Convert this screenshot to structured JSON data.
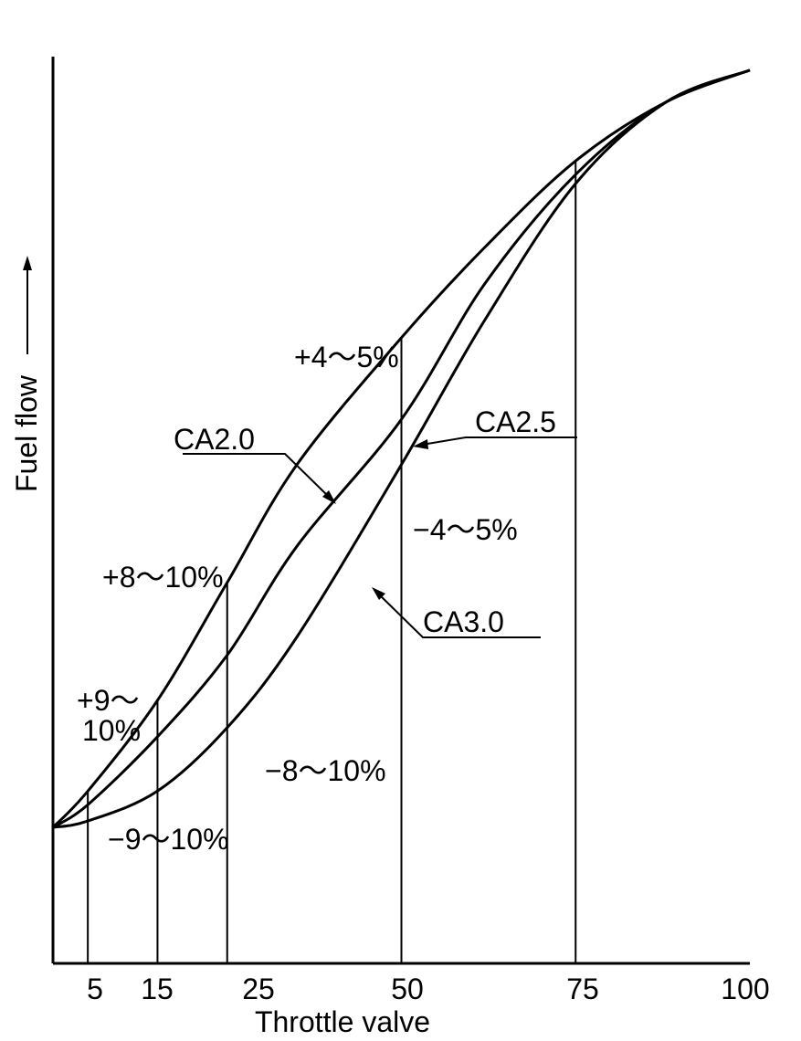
{
  "chart_data": {
    "type": "line",
    "title": "",
    "xlabel": "Throttle valve",
    "ylabel": "Fuel flow",
    "xlim": [
      0,
      100
    ],
    "ylim": [
      0,
      100
    ],
    "x_ticks": [
      "5",
      "15",
      "25",
      "50",
      "75",
      "100"
    ],
    "grid": false,
    "series": [
      {
        "name": "CA2.0",
        "x": [
          0,
          5,
          15,
          25,
          35,
          50,
          62,
          75,
          88,
          100
        ],
        "y": [
          15,
          19,
          29,
          42,
          55,
          69,
          79,
          88.5,
          95,
          98.5
        ]
      },
      {
        "name": "CA2.5",
        "x": [
          0,
          5,
          15,
          25,
          35,
          50,
          62,
          75,
          88,
          100
        ],
        "y": [
          15,
          17.5,
          25,
          34,
          46,
          60,
          75,
          87,
          95,
          98.5
        ]
      },
      {
        "name": "CA3.0",
        "x": [
          0,
          5,
          15,
          25,
          35,
          50,
          62,
          75,
          88,
          100
        ],
        "y": [
          15,
          15.7,
          19,
          26,
          36,
          55,
          71,
          86,
          95,
          98.5
        ]
      }
    ],
    "marker_lines_x": [
      5,
      15,
      25,
      50,
      75
    ],
    "annotations": {
      "diff_50_plus": "+4～5%",
      "diff_50_minus": "−4～5%",
      "diff_25_plus": "+8～10%",
      "diff_25_minus": "−8～10%",
      "diff_15_plus_a": "+9～",
      "diff_15_plus_b": "10%",
      "diff_15_minus": "−9～10%"
    }
  }
}
